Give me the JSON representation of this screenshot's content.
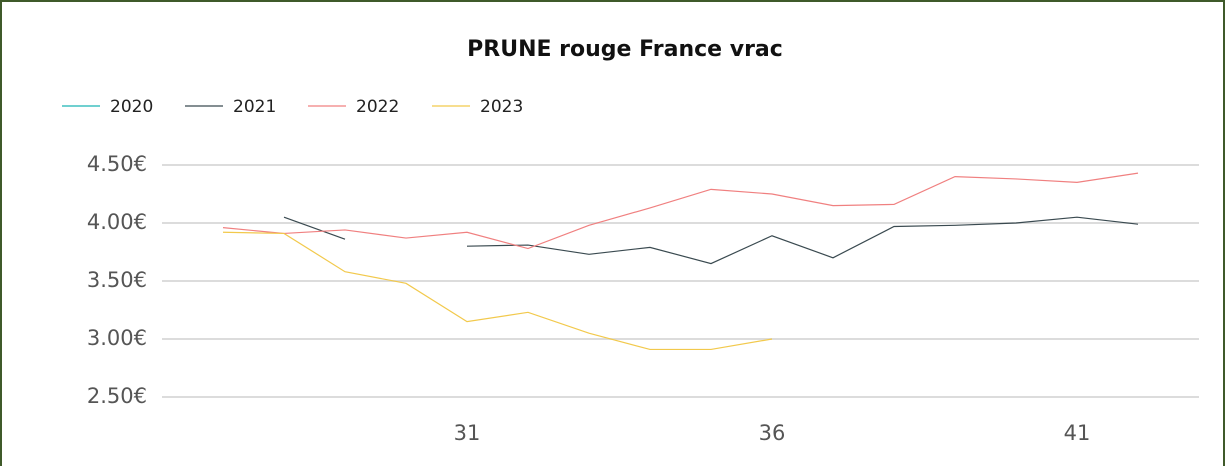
{
  "chart_data": {
    "type": "line",
    "title": "PRUNE rouge France vrac",
    "x": [
      27,
      28,
      29,
      30,
      31,
      32,
      33,
      34,
      35,
      36,
      37,
      38,
      39,
      40,
      41,
      42
    ],
    "series": [
      {
        "name": "2020",
        "color": "#1ab3b3",
        "values": [
          null,
          null,
          null,
          null,
          null,
          null,
          null,
          null,
          null,
          null,
          null,
          null,
          null,
          null,
          null,
          null
        ]
      },
      {
        "name": "2021",
        "color": "#3a4a50",
        "values": [
          null,
          4.05,
          3.86,
          null,
          3.8,
          3.81,
          3.73,
          3.79,
          3.65,
          3.89,
          3.7,
          3.97,
          3.98,
          4.0,
          4.05,
          3.99
        ]
      },
      {
        "name": "2022",
        "color": "#f08080",
        "values": [
          3.96,
          3.91,
          3.94,
          3.87,
          3.92,
          3.78,
          3.98,
          4.13,
          4.29,
          4.25,
          4.15,
          4.16,
          4.4,
          4.38,
          4.35,
          4.43
        ]
      },
      {
        "name": "2023",
        "color": "#f2c94c",
        "values": [
          3.92,
          3.91,
          3.58,
          3.48,
          3.15,
          3.23,
          3.05,
          2.91,
          2.91,
          3.0,
          null,
          null,
          null,
          null,
          null,
          null
        ]
      }
    ],
    "xlim": [
      26,
      43
    ],
    "xticks": [
      31,
      36,
      41
    ],
    "ylim": [
      2.25,
      4.75
    ],
    "yticks": [
      {
        "value": 2.5,
        "label": "2.50€"
      },
      {
        "value": 3.0,
        "label": "3.00€"
      },
      {
        "value": 3.5,
        "label": "3.50€"
      },
      {
        "value": 4.0,
        "label": "4.00€"
      },
      {
        "value": 4.5,
        "label": "4.50€"
      }
    ],
    "grid": true,
    "legend": "top-left"
  }
}
